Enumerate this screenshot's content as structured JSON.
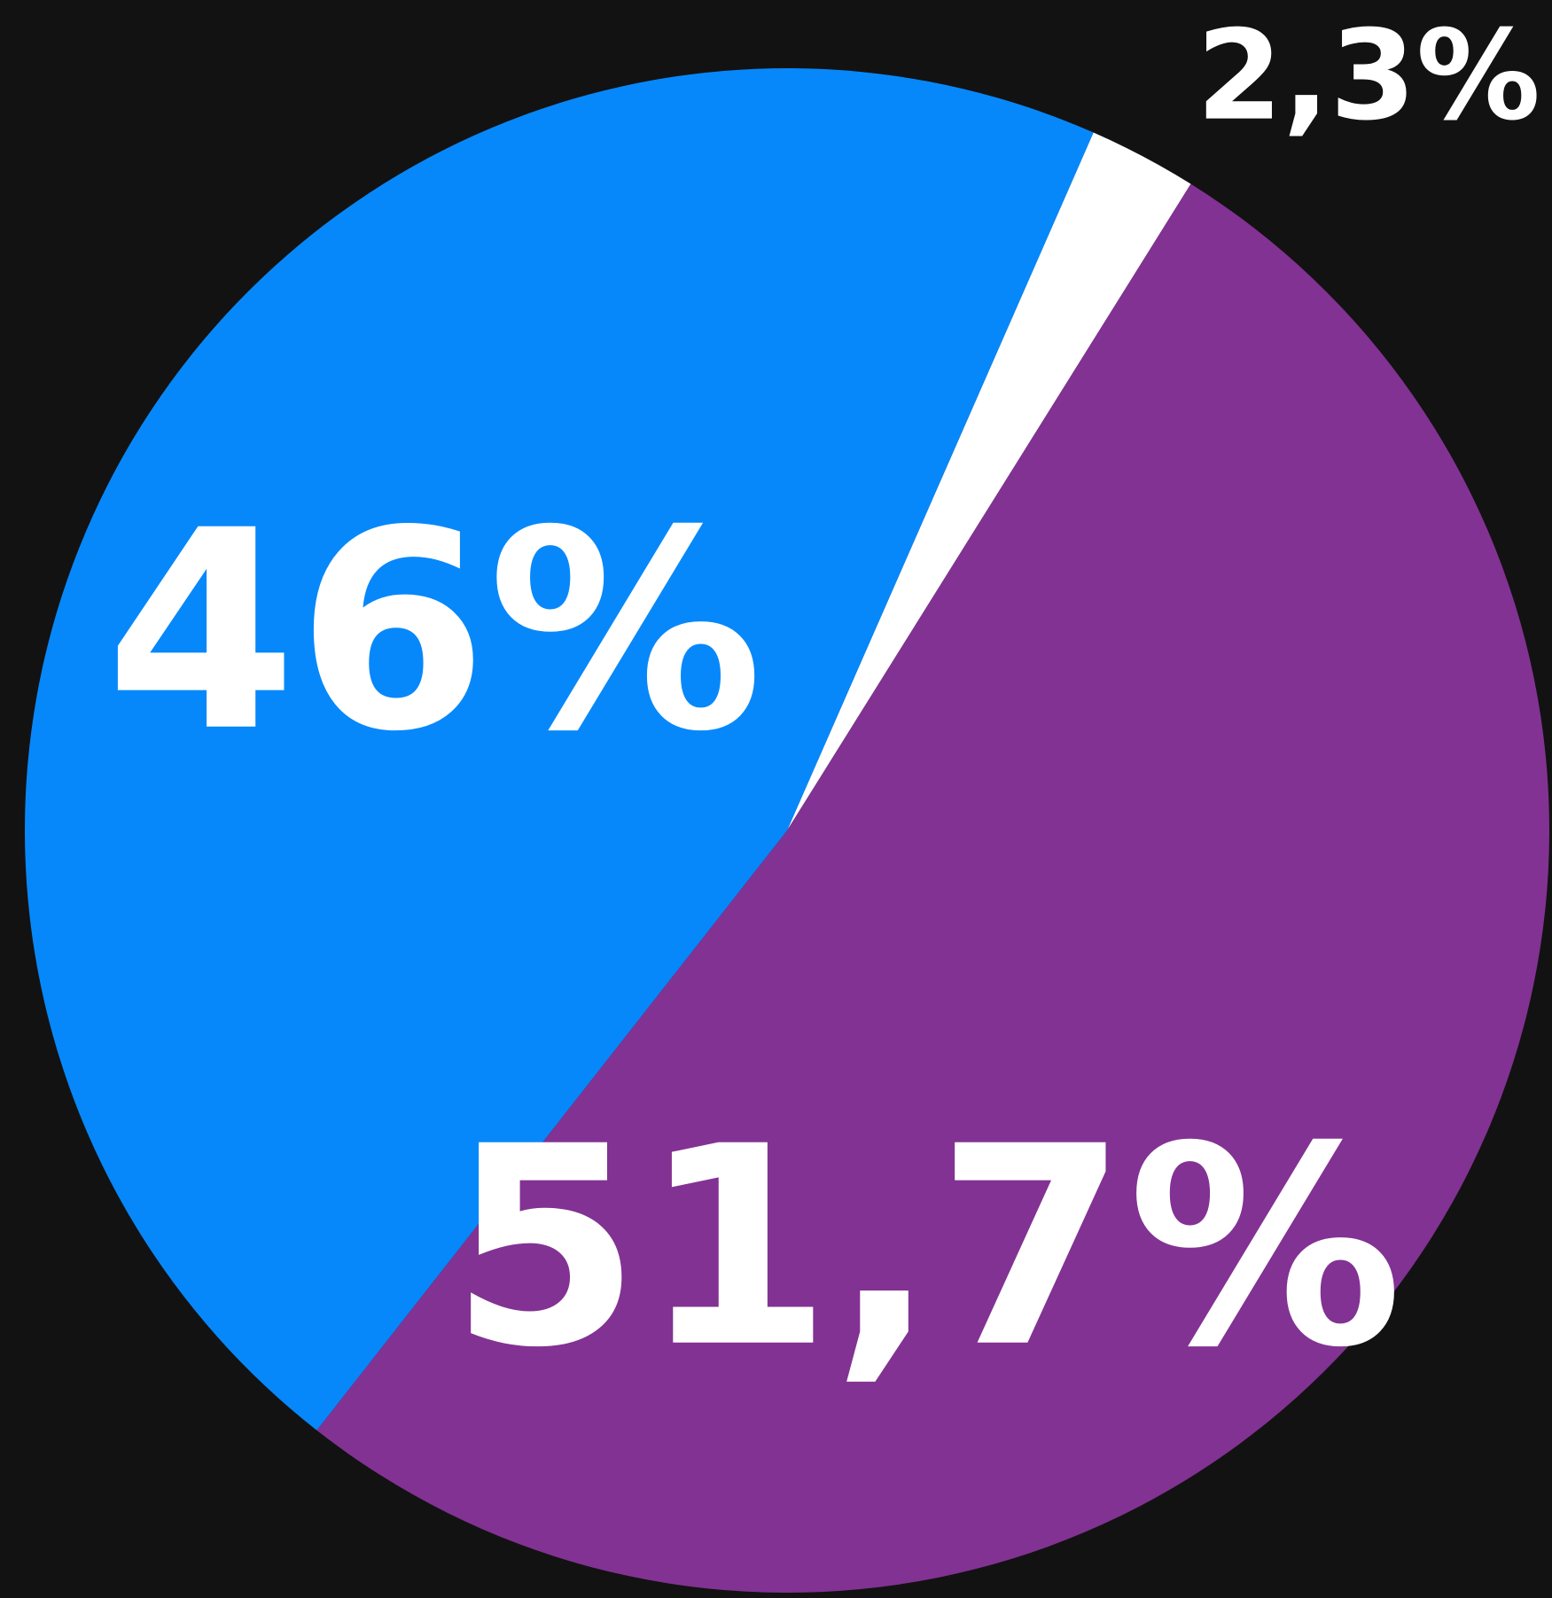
{
  "chart_data": {
    "type": "pie",
    "values": [
      2.3,
      51.7,
      46
    ],
    "value_labels": [
      "2,3%",
      "51,7%",
      "46%"
    ],
    "colors": [
      "#ffffff",
      "#823293",
      "#0788fa"
    ]
  }
}
